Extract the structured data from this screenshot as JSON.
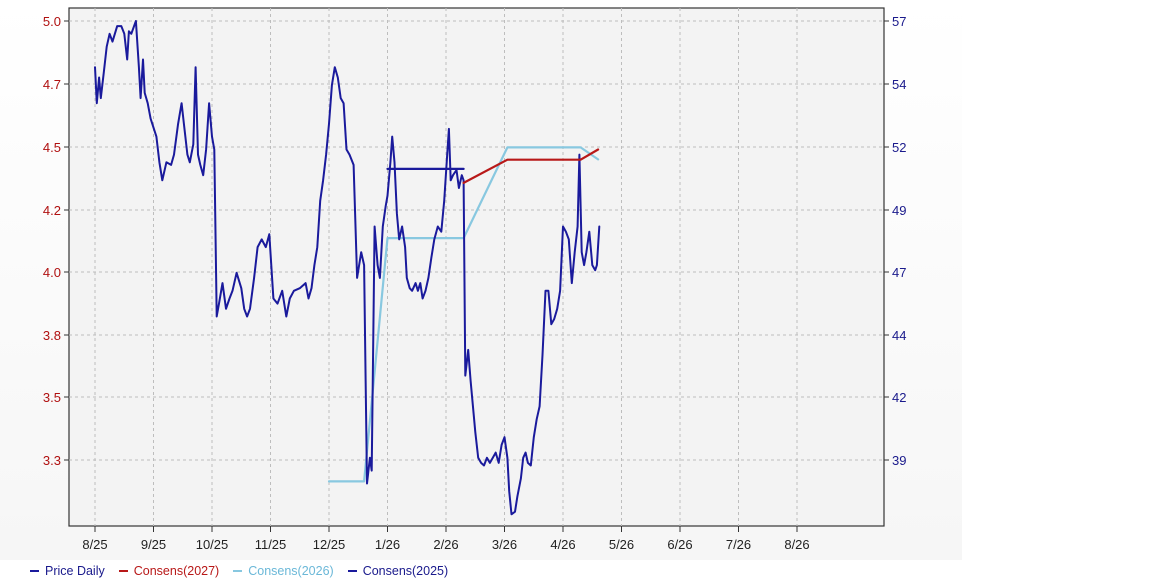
{
  "chart_data": {
    "type": "line",
    "title": "",
    "x_labels": [
      "8/25",
      "9/25",
      "10/25",
      "11/25",
      "12/25",
      "1/26",
      "2/26",
      "3/26",
      "4/26",
      "5/26",
      "6/26",
      "7/26",
      "8/26"
    ],
    "left_axis": {
      "ticks": [
        "5.0",
        "4.7",
        "4.5",
        "4.2",
        "4.0",
        "3.8",
        "3.5",
        "3.3"
      ],
      "range": [
        3.05,
        5.0
      ]
    },
    "right_axis": {
      "ticks": [
        "57",
        "54",
        "52",
        "49",
        "47",
        "44",
        "42",
        "39"
      ],
      "range": [
        36.0,
        57.0
      ]
    },
    "grid": true,
    "legend_position": "bottom",
    "colors": {
      "price": "#1a1a9c",
      "c2027": "#b81818",
      "c2026": "#88c8e0",
      "c2025": "#1a1a9c",
      "plot_bg": "#f3f3f3"
    },
    "series": [
      {
        "name": "Price Daily",
        "axis": "left",
        "points": [
          [
            0,
            4.82
          ],
          [
            0.03,
            4.68
          ],
          [
            0.07,
            4.78
          ],
          [
            0.1,
            4.7
          ],
          [
            0.15,
            4.8
          ],
          [
            0.2,
            4.9
          ],
          [
            0.25,
            4.95
          ],
          [
            0.3,
            4.92
          ],
          [
            0.38,
            4.98
          ],
          [
            0.45,
            4.98
          ],
          [
            0.5,
            4.95
          ],
          [
            0.55,
            4.85
          ],
          [
            0.58,
            4.96
          ],
          [
            0.62,
            4.95
          ],
          [
            0.7,
            5.0
          ],
          [
            0.75,
            4.82
          ],
          [
            0.78,
            4.7
          ],
          [
            0.82,
            4.85
          ],
          [
            0.85,
            4.72
          ],
          [
            0.9,
            4.68
          ],
          [
            0.95,
            4.62
          ],
          [
            1.05,
            4.55
          ],
          [
            1.1,
            4.45
          ],
          [
            1.15,
            4.38
          ],
          [
            1.22,
            4.45
          ],
          [
            1.3,
            4.44
          ],
          [
            1.35,
            4.48
          ],
          [
            1.42,
            4.6
          ],
          [
            1.48,
            4.68
          ],
          [
            1.52,
            4.6
          ],
          [
            1.58,
            4.48
          ],
          [
            1.62,
            4.45
          ],
          [
            1.68,
            4.52
          ],
          [
            1.72,
            4.82
          ],
          [
            1.76,
            4.48
          ],
          [
            1.8,
            4.44
          ],
          [
            1.85,
            4.4
          ],
          [
            1.9,
            4.5
          ],
          [
            1.95,
            4.68
          ],
          [
            2.0,
            4.55
          ],
          [
            2.04,
            4.5
          ],
          [
            2.08,
            3.85
          ],
          [
            2.12,
            3.9
          ],
          [
            2.18,
            3.98
          ],
          [
            2.24,
            3.88
          ],
          [
            2.3,
            3.92
          ],
          [
            2.35,
            3.95
          ],
          [
            2.42,
            4.02
          ],
          [
            2.5,
            3.96
          ],
          [
            2.55,
            3.88
          ],
          [
            2.6,
            3.85
          ],
          [
            2.65,
            3.88
          ],
          [
            2.72,
            4.0
          ],
          [
            2.78,
            4.12
          ],
          [
            2.85,
            4.15
          ],
          [
            2.92,
            4.12
          ],
          [
            2.98,
            4.17
          ],
          [
            3.05,
            3.92
          ],
          [
            3.12,
            3.9
          ],
          [
            3.2,
            3.95
          ],
          [
            3.27,
            3.85
          ],
          [
            3.33,
            3.92
          ],
          [
            3.4,
            3.95
          ],
          [
            3.5,
            3.96
          ],
          [
            3.6,
            3.98
          ],
          [
            3.65,
            3.92
          ],
          [
            3.7,
            3.96
          ],
          [
            3.75,
            4.05
          ],
          [
            3.8,
            4.12
          ],
          [
            3.85,
            4.3
          ],
          [
            3.9,
            4.38
          ],
          [
            3.95,
            4.48
          ],
          [
            4.0,
            4.6
          ],
          [
            4.05,
            4.75
          ],
          [
            4.1,
            4.82
          ],
          [
            4.15,
            4.78
          ],
          [
            4.2,
            4.7
          ],
          [
            4.25,
            4.68
          ],
          [
            4.3,
            4.5
          ],
          [
            4.35,
            4.48
          ],
          [
            4.42,
            4.44
          ],
          [
            4.48,
            4.0
          ],
          [
            4.55,
            4.1
          ],
          [
            4.6,
            4.05
          ],
          [
            4.65,
            3.2
          ],
          [
            4.7,
            3.3
          ],
          [
            4.73,
            3.25
          ],
          [
            4.78,
            4.2
          ],
          [
            4.83,
            4.05
          ],
          [
            4.87,
            4.0
          ],
          [
            4.92,
            4.2
          ],
          [
            4.97,
            4.28
          ],
          [
            5.0,
            4.32
          ],
          [
            5.05,
            4.45
          ],
          [
            5.08,
            4.55
          ],
          [
            5.12,
            4.45
          ],
          [
            5.16,
            4.25
          ],
          [
            5.2,
            4.15
          ],
          [
            5.25,
            4.2
          ],
          [
            5.3,
            4.12
          ],
          [
            5.33,
            4.0
          ],
          [
            5.38,
            3.96
          ],
          [
            5.42,
            3.95
          ],
          [
            5.48,
            3.98
          ],
          [
            5.52,
            3.95
          ],
          [
            5.56,
            3.98
          ],
          [
            5.6,
            3.92
          ],
          [
            5.65,
            3.95
          ],
          [
            5.7,
            4.0
          ],
          [
            5.75,
            4.08
          ],
          [
            5.8,
            4.15
          ],
          [
            5.86,
            4.2
          ],
          [
            5.92,
            4.18
          ],
          [
            5.97,
            4.3
          ],
          [
            6.02,
            4.48
          ],
          [
            6.05,
            4.58
          ],
          [
            6.08,
            4.38
          ],
          [
            6.12,
            4.4
          ],
          [
            6.18,
            4.42
          ],
          [
            6.22,
            4.35
          ],
          [
            6.27,
            4.4
          ],
          [
            6.3,
            4.38
          ],
          [
            6.33,
            3.62
          ],
          [
            6.38,
            3.72
          ],
          [
            6.42,
            3.6
          ],
          [
            6.5,
            3.4
          ],
          [
            6.55,
            3.3
          ],
          [
            6.6,
            3.28
          ],
          [
            6.65,
            3.27
          ],
          [
            6.7,
            3.3
          ],
          [
            6.75,
            3.28
          ],
          [
            6.8,
            3.3
          ],
          [
            6.85,
            3.32
          ],
          [
            6.9,
            3.28
          ],
          [
            6.95,
            3.35
          ],
          [
            7.0,
            3.38
          ],
          [
            7.05,
            3.3
          ],
          [
            7.08,
            3.17
          ],
          [
            7.12,
            3.08
          ],
          [
            7.18,
            3.09
          ],
          [
            7.22,
            3.15
          ],
          [
            7.28,
            3.22
          ],
          [
            7.32,
            3.3
          ],
          [
            7.36,
            3.32
          ],
          [
            7.4,
            3.28
          ],
          [
            7.45,
            3.27
          ],
          [
            7.5,
            3.38
          ],
          [
            7.55,
            3.45
          ],
          [
            7.6,
            3.5
          ],
          [
            7.65,
            3.7
          ],
          [
            7.7,
            3.95
          ],
          [
            7.75,
            3.95
          ],
          [
            7.8,
            3.82
          ],
          [
            7.85,
            3.84
          ],
          [
            7.9,
            3.88
          ],
          [
            7.95,
            3.95
          ],
          [
            8.0,
            4.2
          ],
          [
            8.05,
            4.18
          ],
          [
            8.1,
            4.15
          ],
          [
            8.15,
            3.98
          ],
          [
            8.2,
            4.1
          ],
          [
            8.25,
            4.2
          ],
          [
            8.28,
            4.48
          ],
          [
            8.32,
            4.1
          ],
          [
            8.36,
            4.05
          ],
          [
            8.4,
            4.1
          ],
          [
            8.45,
            4.18
          ],
          [
            8.5,
            4.05
          ],
          [
            8.55,
            4.03
          ],
          [
            8.58,
            4.05
          ],
          [
            8.62,
            4.2
          ]
        ]
      },
      {
        "name": "Consens(2027)",
        "axis": "left",
        "points": [
          [
            6.3,
            4.37
          ],
          [
            7.05,
            4.46
          ],
          [
            7.4,
            4.46
          ],
          [
            8.3,
            4.46
          ],
          [
            8.6,
            4.5
          ]
        ]
      },
      {
        "name": "Consens(2026)",
        "axis": "right",
        "points": [
          [
            4.0,
            37.7
          ],
          [
            4.6,
            37.7
          ],
          [
            5.0,
            47.9
          ],
          [
            6.3,
            47.9
          ],
          [
            7.05,
            51.7
          ],
          [
            8.3,
            51.7
          ],
          [
            8.6,
            51.2
          ]
        ]
      },
      {
        "name": "Consens(2025)",
        "axis": "right",
        "points": [
          [
            5.0,
            50.8
          ],
          [
            5.8,
            50.8
          ],
          [
            6.3,
            50.8
          ]
        ]
      }
    ]
  },
  "legend": {
    "items": [
      {
        "label": "Price Daily",
        "color": "#1a1a9c"
      },
      {
        "label": "Consens(2027)",
        "color": "#b81818"
      },
      {
        "label": "Consens(2026)",
        "color": "#88c8e0"
      },
      {
        "label": "Consens(2025)",
        "color": "#1a1a9c"
      }
    ]
  }
}
